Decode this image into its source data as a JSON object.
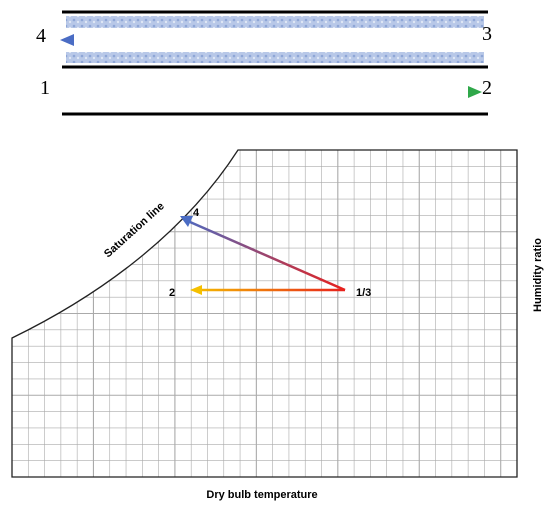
{
  "schematic": {
    "top_left": "4",
    "top_right": "3",
    "bottom_left": "1",
    "bottom_right": "2"
  },
  "chart": {
    "curve_label": "Saturation line",
    "point_4": "4",
    "point_1_3": "1/3",
    "point_2": "2",
    "y_axis_label": "Humidity ratio",
    "x_axis_label": "Dry bulb temperature"
  }
}
